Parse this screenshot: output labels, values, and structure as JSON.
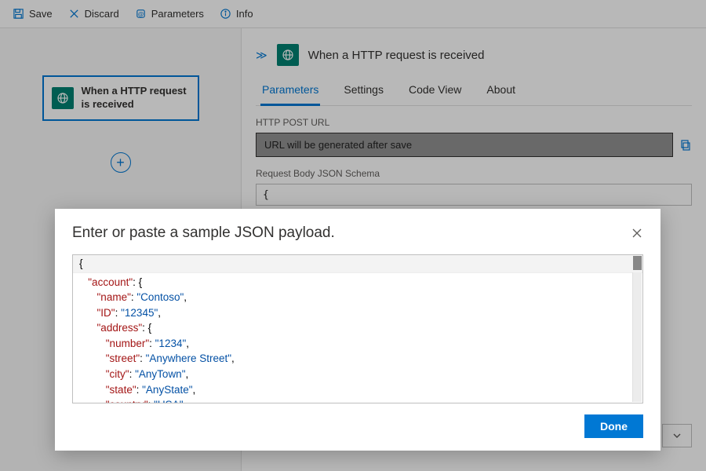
{
  "toolbar": {
    "save": "Save",
    "discard": "Discard",
    "parameters": "Parameters",
    "info": "Info"
  },
  "designer": {
    "trigger_label": "When a HTTP request is received"
  },
  "panel": {
    "title": "When a HTTP request is received",
    "tabs": {
      "parameters": "Parameters",
      "settings": "Settings",
      "codeview": "Code View",
      "about": "About"
    },
    "active_tab": "parameters",
    "url_label": "HTTP POST URL",
    "url_value": "URL will be generated after save",
    "schema_label": "Request Body JSON Schema",
    "schema_preview": "{"
  },
  "modal": {
    "title": "Enter or paste a sample JSON payload.",
    "done": "Done",
    "payload": {
      "first_line": "{",
      "lines": [
        {
          "indent": 1,
          "key": "account",
          "after": ": {"
        },
        {
          "indent": 2,
          "key": "name",
          "value": "Contoso",
          "comma": true
        },
        {
          "indent": 2,
          "key": "ID",
          "value": "12345",
          "comma": true
        },
        {
          "indent": 2,
          "key": "address",
          "after": ": {"
        },
        {
          "indent": 3,
          "key": "number",
          "value": "1234",
          "comma": true
        },
        {
          "indent": 3,
          "key": "street",
          "value": "Anywhere Street",
          "comma": true
        },
        {
          "indent": 3,
          "key": "city",
          "value": "AnyTown",
          "comma": true
        },
        {
          "indent": 3,
          "key": "state",
          "value": "AnyState",
          "comma": true
        },
        {
          "indent": 3,
          "key": "country",
          "value": "USA",
          "comma": true,
          "cut": true
        }
      ]
    }
  },
  "colors": {
    "accent": "#0078d4",
    "teal": "#008272"
  }
}
